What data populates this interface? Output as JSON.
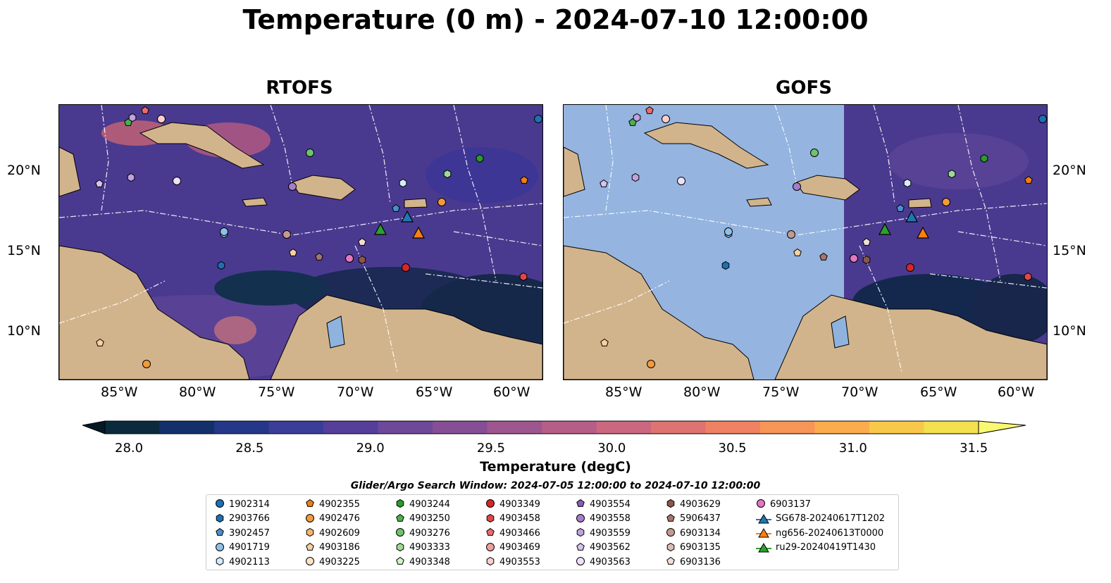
{
  "title": "Temperature (0 m) - 2024-07-10 12:00:00",
  "panels": [
    {
      "title": "RTOFS"
    },
    {
      "title": "GOFS"
    }
  ],
  "lon_ticks": [
    "85°W",
    "80°W",
    "75°W",
    "70°W",
    "65°W",
    "60°W"
  ],
  "lat_ticks": [
    "20°N",
    "15°N",
    "10°N"
  ],
  "colorbar": {
    "label": "Temperature (degC)",
    "ticks": [
      "28.0",
      "28.5",
      "29.0",
      "29.5",
      "30.0",
      "30.5",
      "31.0",
      "31.5"
    ],
    "colors": [
      "#0b2a3e",
      "#13306a",
      "#243788",
      "#3b3d98",
      "#553f9a",
      "#6e4899",
      "#864f95",
      "#9e568f",
      "#b55e88",
      "#cb677f",
      "#de7371",
      "#ef8263",
      "#f79656",
      "#fbad4d",
      "#f8c84b",
      "#f3e04f"
    ]
  },
  "search_window": "Glider/Argo Search Window: 2024-07-05 12:00:00 to 2024-07-10 12:00:00",
  "legend": [
    {
      "label": "1902314",
      "marker": "circle",
      "color": "#1f6fb4"
    },
    {
      "label": "2903766",
      "marker": "hexagon",
      "color": "#1f6fb4"
    },
    {
      "label": "3902457",
      "marker": "pentagon",
      "color": "#4a8ed0"
    },
    {
      "label": "4901719",
      "marker": "circle",
      "color": "#8fc0ea"
    },
    {
      "label": "4902113",
      "marker": "hexagon",
      "color": "#d6ebfb"
    },
    {
      "label": "4902355",
      "marker": "pentagon",
      "color": "#f07f12"
    },
    {
      "label": "4902476",
      "marker": "circle",
      "color": "#f39a3c"
    },
    {
      "label": "4902609",
      "marker": "hexagon",
      "color": "#f7b46f"
    },
    {
      "label": "4903186",
      "marker": "pentagon",
      "color": "#fbcf9e"
    },
    {
      "label": "4903225",
      "marker": "circle",
      "color": "#fde3c6"
    },
    {
      "label": "4903244",
      "marker": "hexagon",
      "color": "#2b9b2b"
    },
    {
      "label": "4903250",
      "marker": "pentagon",
      "color": "#49b24a"
    },
    {
      "label": "4903276",
      "marker": "circle",
      "color": "#6cc46a"
    },
    {
      "label": "4903333",
      "marker": "hexagon",
      "color": "#9ddc92"
    },
    {
      "label": "4903348",
      "marker": "pentagon",
      "color": "#d2f2c8"
    },
    {
      "label": "4903349",
      "marker": "circle",
      "color": "#d62728"
    },
    {
      "label": "4903458",
      "marker": "hexagon",
      "color": "#e04848"
    },
    {
      "label": "4903466",
      "marker": "pentagon",
      "color": "#eb6b6b"
    },
    {
      "label": "4903469",
      "marker": "circle",
      "color": "#f29d9d"
    },
    {
      "label": "4903553",
      "marker": "hexagon",
      "color": "#f8cfcf"
    },
    {
      "label": "4903554",
      "marker": "pentagon",
      "color": "#8a5cb8"
    },
    {
      "label": "4903558",
      "marker": "circle",
      "color": "#a57dcc"
    },
    {
      "label": "4903559",
      "marker": "hexagon",
      "color": "#c1a2e0"
    },
    {
      "label": "4903562",
      "marker": "pentagon",
      "color": "#d7c3f0"
    },
    {
      "label": "4903563",
      "marker": "circle",
      "color": "#eee0fb"
    },
    {
      "label": "4903629",
      "marker": "hexagon",
      "color": "#8c564b"
    },
    {
      "label": "5906437",
      "marker": "pentagon",
      "color": "#a8756b"
    },
    {
      "label": "6903134",
      "marker": "circle",
      "color": "#c49a8f"
    },
    {
      "label": "6903135",
      "marker": "hexagon",
      "color": "#dcbdb4"
    },
    {
      "label": "6903136",
      "marker": "pentagon",
      "color": "#f2ddd6"
    },
    {
      "label": "6903137",
      "marker": "circle",
      "color": "#e377c2"
    },
    {
      "label": "SG678-20240617T1202",
      "marker": "triangle",
      "color": "#1f77b4"
    },
    {
      "label": "ng656-20240613T0000",
      "marker": "triangle",
      "color": "#ff7f0e"
    },
    {
      "label": "ru29-20240419T1430",
      "marker": "triangle",
      "color": "#2ca02c"
    }
  ]
}
